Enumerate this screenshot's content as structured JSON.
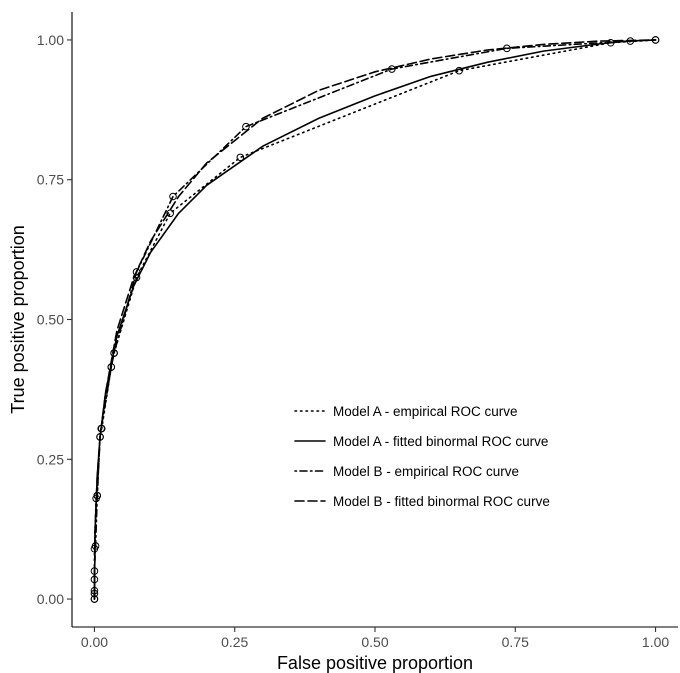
{
  "chart_data": {
    "type": "line",
    "title": "",
    "xlabel": "False positive proportion",
    "ylabel": "True positive proportion",
    "xlim": [
      -0.04,
      1.04
    ],
    "ylim": [
      -0.05,
      1.05
    ],
    "x_ticks": [
      0.0,
      0.25,
      0.5,
      0.75,
      1.0
    ],
    "y_ticks": [
      0.0,
      0.25,
      0.5,
      0.75,
      1.0
    ],
    "x_tick_labels": [
      "0.00",
      "0.25",
      "0.50",
      "0.75",
      "1.00"
    ],
    "y_tick_labels": [
      "0.00",
      "0.25",
      "0.50",
      "0.75",
      "1.00"
    ],
    "grid": false,
    "legend_position": "bottom-right (inside)",
    "series": [
      {
        "name": "Model A - empirical ROC curve",
        "line_style": "dotted",
        "x": [
          0.0,
          0.0,
          0.0,
          0.0,
          0.003,
          0.005,
          0.01,
          0.013,
          0.03,
          0.035,
          0.075,
          0.135,
          0.26,
          0.65,
          0.92,
          1.0
        ],
        "y": [
          0.0,
          0.01,
          0.035,
          0.09,
          0.18,
          0.185,
          0.29,
          0.305,
          0.415,
          0.44,
          0.575,
          0.69,
          0.79,
          0.945,
          0.995,
          1.0
        ]
      },
      {
        "name": "Model A - fitted binormal ROC curve",
        "line_style": "solid",
        "x": [
          0.0,
          0.001,
          0.005,
          0.01,
          0.02,
          0.04,
          0.07,
          0.1,
          0.15,
          0.2,
          0.3,
          0.4,
          0.5,
          0.6,
          0.7,
          0.8,
          0.9,
          0.95,
          1.0
        ],
        "y": [
          0.0,
          0.12,
          0.22,
          0.29,
          0.37,
          0.47,
          0.56,
          0.62,
          0.69,
          0.74,
          0.81,
          0.86,
          0.9,
          0.935,
          0.96,
          0.98,
          0.993,
          0.998,
          1.0
        ]
      },
      {
        "name": "Model B - empirical ROC curve",
        "line_style": "dotdash",
        "x": [
          0.0,
          0.0,
          0.0,
          0.002,
          0.005,
          0.01,
          0.012,
          0.03,
          0.035,
          0.075,
          0.14,
          0.27,
          0.53,
          0.735,
          0.955,
          1.0
        ],
        "y": [
          0.0,
          0.015,
          0.05,
          0.095,
          0.185,
          0.29,
          0.305,
          0.415,
          0.44,
          0.585,
          0.72,
          0.845,
          0.948,
          0.985,
          0.998,
          1.0
        ]
      },
      {
        "name": "Model B - fitted binormal ROC curve",
        "line_style": "dashed",
        "x": [
          0.0,
          0.001,
          0.005,
          0.01,
          0.02,
          0.04,
          0.07,
          0.1,
          0.15,
          0.2,
          0.3,
          0.4,
          0.5,
          0.6,
          0.7,
          0.8,
          0.9,
          0.95,
          1.0
        ],
        "y": [
          0.0,
          0.12,
          0.22,
          0.29,
          0.37,
          0.48,
          0.575,
          0.64,
          0.72,
          0.78,
          0.86,
          0.91,
          0.943,
          0.966,
          0.982,
          0.992,
          0.998,
          0.999,
          1.0
        ]
      }
    ]
  }
}
